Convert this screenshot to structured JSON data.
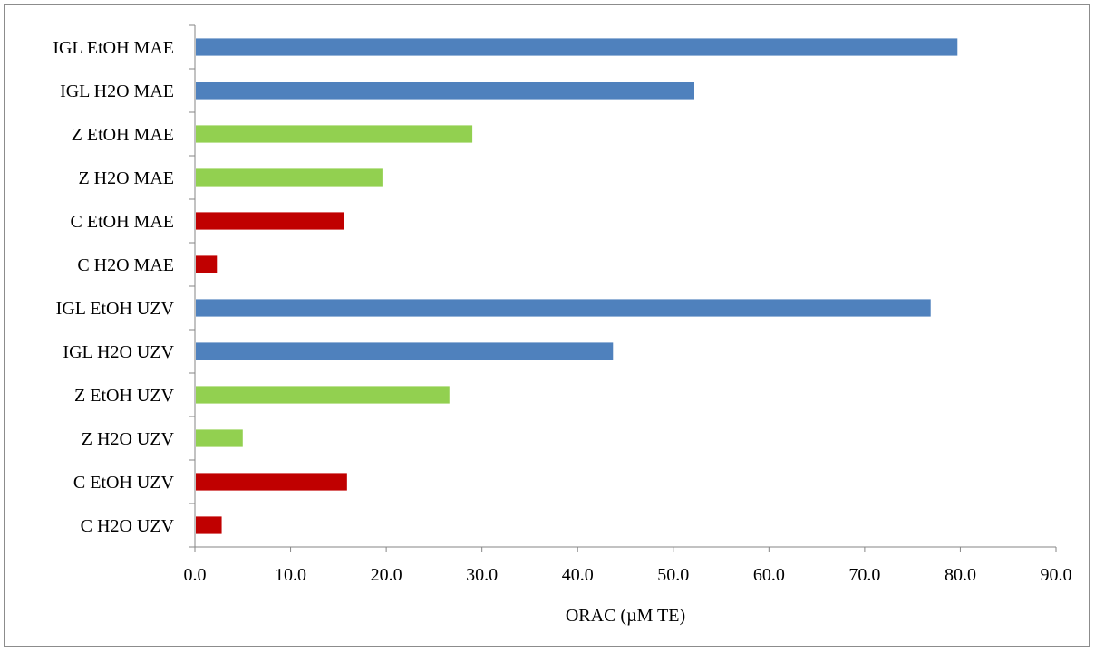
{
  "chart_data": {
    "type": "bar",
    "orientation": "horizontal",
    "title": "",
    "xlabel": "ORAC (µM TE)",
    "ylabel": "",
    "xlim": [
      0,
      90
    ],
    "x_ticks": [
      "0.0",
      "10.0",
      "20.0",
      "30.0",
      "40.0",
      "50.0",
      "60.0",
      "70.0",
      "80.0",
      "90.0"
    ],
    "grid": false,
    "legend": "none",
    "categories": [
      "IGL EtOH MAE",
      "IGL H2O MAE",
      "Z EtOH MAE",
      "Z H2O MAE",
      "C EtOH MAE",
      "C H2O MAE",
      "IGL EtOH UZV",
      "IGL H2O UZV",
      "Z EtOH UZV",
      "Z H2O UZV",
      "C EtOH UZV",
      "C H2O UZV"
    ],
    "values": [
      79.7,
      52.2,
      29.0,
      19.6,
      15.6,
      2.3,
      76.9,
      43.7,
      26.6,
      5.0,
      15.9,
      2.8
    ],
    "colors": [
      "#4f81bd",
      "#4f81bd",
      "#92d050",
      "#92d050",
      "#c00000",
      "#c00000",
      "#4f81bd",
      "#4f81bd",
      "#92d050",
      "#92d050",
      "#c00000",
      "#c00000"
    ]
  }
}
